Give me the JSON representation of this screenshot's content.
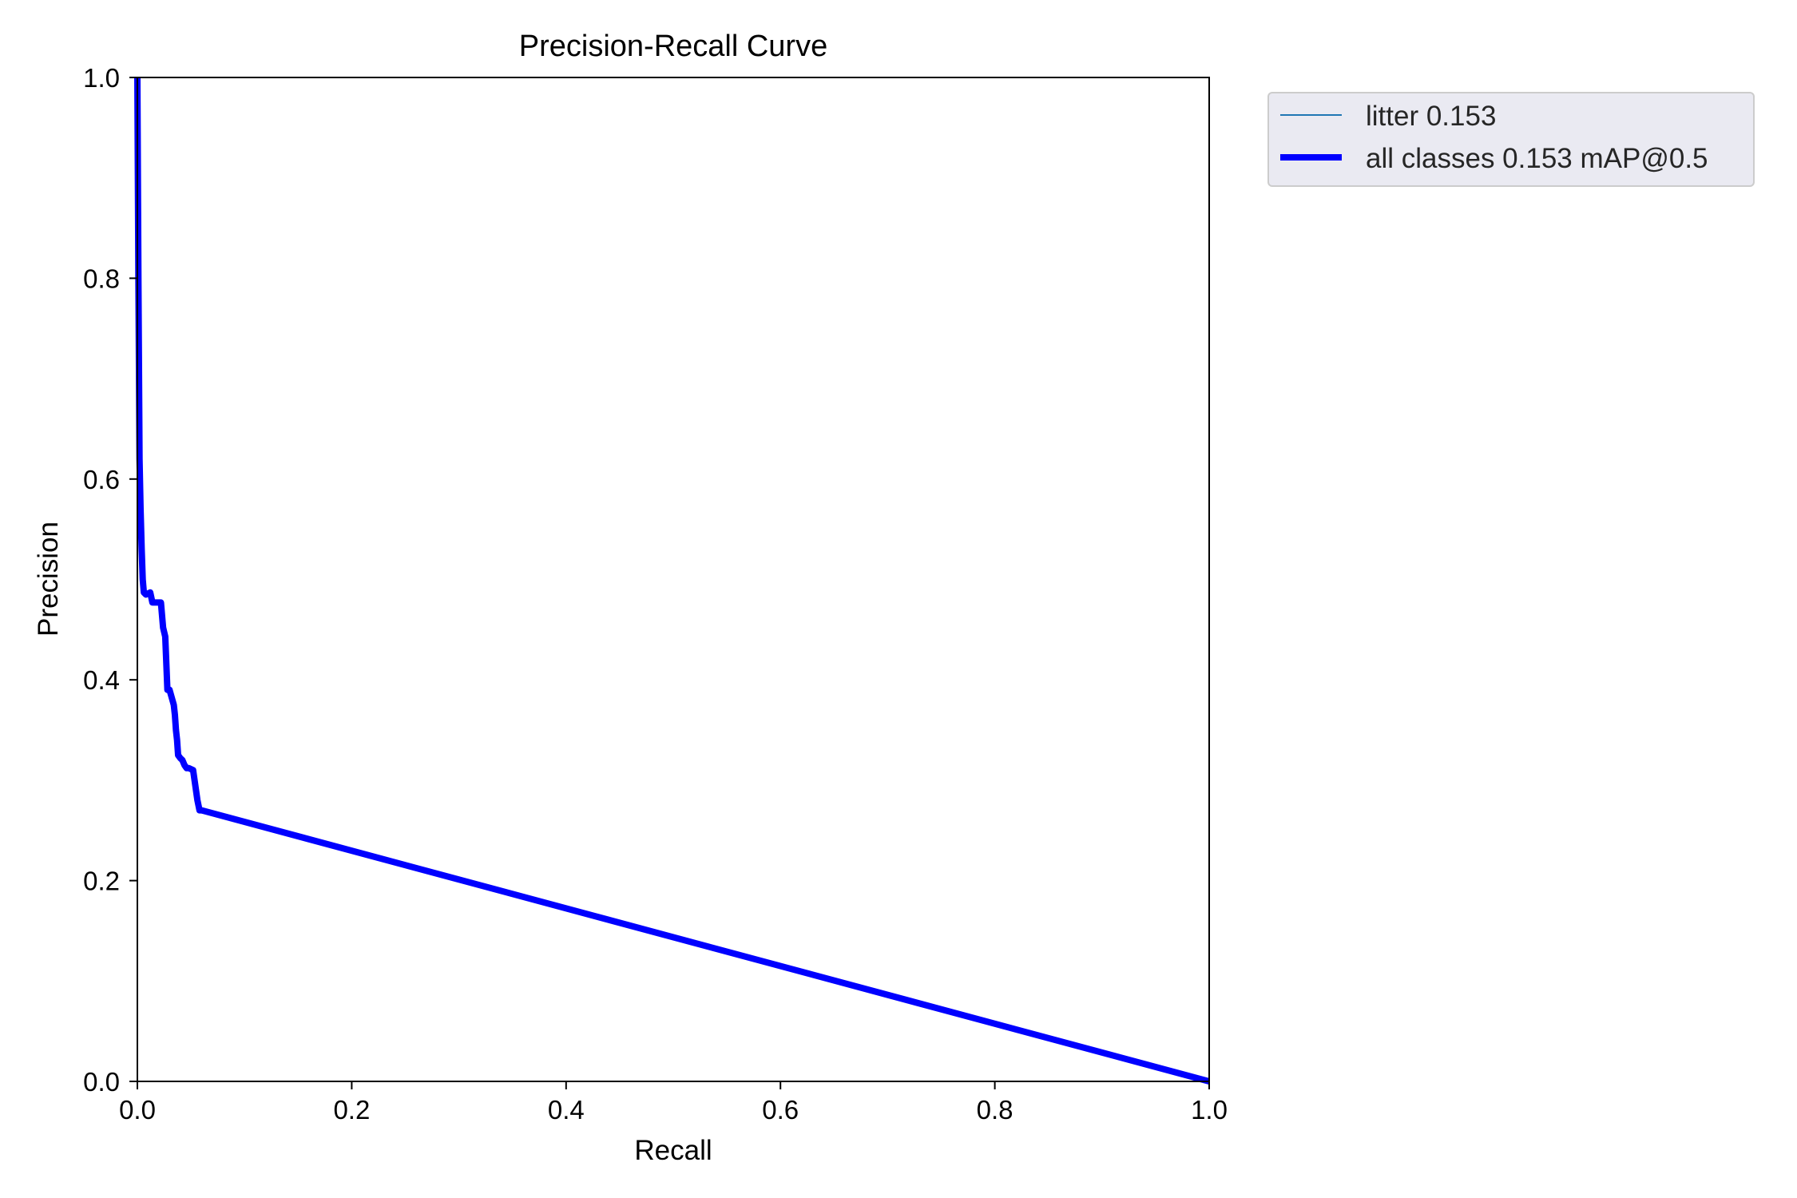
{
  "chart_data": {
    "type": "line",
    "title": "Precision-Recall Curve",
    "xlabel": "Recall",
    "ylabel": "Precision",
    "xlim": [
      0,
      1
    ],
    "ylim": [
      0,
      1
    ],
    "xticks": [
      "0.0",
      "0.2",
      "0.4",
      "0.6",
      "0.8",
      "1.0"
    ],
    "yticks": [
      "0.0",
      "0.2",
      "0.4",
      "0.6",
      "0.8",
      "1.0"
    ],
    "grid": false,
    "legend_position": "outside-top-right",
    "series": [
      {
        "name": "litter 0.153",
        "color": "#1f77b4",
        "x": [
          0.0,
          0.001,
          0.002,
          0.003,
          0.004,
          0.005,
          0.006,
          0.008,
          0.012,
          0.014,
          0.022,
          0.024,
          0.026,
          0.028,
          0.03,
          0.034,
          0.035,
          0.036,
          0.037,
          0.038,
          0.04,
          0.042,
          0.044,
          0.046,
          0.048,
          0.052,
          0.056,
          0.058,
          0.06,
          1.0
        ],
        "y": [
          1.0,
          0.8,
          0.62,
          0.57,
          0.53,
          0.5,
          0.487,
          0.485,
          0.487,
          0.477,
          0.477,
          0.452,
          0.443,
          0.39,
          0.39,
          0.375,
          0.365,
          0.35,
          0.34,
          0.325,
          0.322,
          0.32,
          0.315,
          0.312,
          0.312,
          0.31,
          0.28,
          0.27,
          0.27,
          0.0
        ]
      },
      {
        "name": "all classes 0.153 mAP@0.5",
        "color": "#0000ff",
        "x": [
          0.0,
          0.001,
          0.002,
          0.003,
          0.004,
          0.005,
          0.006,
          0.008,
          0.012,
          0.014,
          0.022,
          0.024,
          0.026,
          0.028,
          0.03,
          0.034,
          0.035,
          0.036,
          0.037,
          0.038,
          0.04,
          0.042,
          0.044,
          0.046,
          0.048,
          0.052,
          0.056,
          0.058,
          0.06,
          1.0
        ],
        "y": [
          1.0,
          0.8,
          0.62,
          0.57,
          0.53,
          0.5,
          0.487,
          0.485,
          0.487,
          0.477,
          0.477,
          0.452,
          0.443,
          0.39,
          0.39,
          0.375,
          0.365,
          0.35,
          0.34,
          0.325,
          0.322,
          0.32,
          0.315,
          0.312,
          0.312,
          0.31,
          0.28,
          0.27,
          0.27,
          0.0
        ]
      }
    ]
  }
}
